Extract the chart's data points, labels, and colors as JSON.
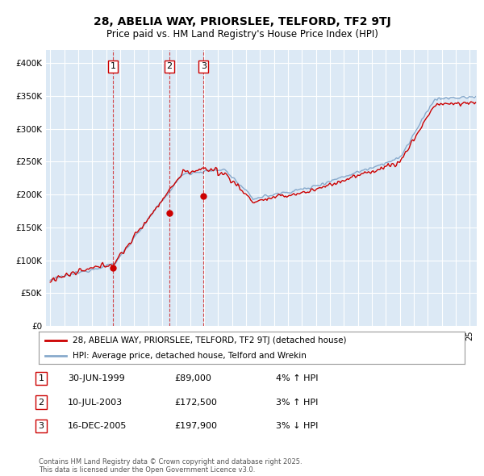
{
  "title": "28, ABELIA WAY, PRIORSLEE, TELFORD, TF2 9TJ",
  "subtitle": "Price paid vs. HM Land Registry's House Price Index (HPI)",
  "ylim": [
    0,
    420000
  ],
  "yticks": [
    0,
    50000,
    100000,
    150000,
    200000,
    250000,
    300000,
    350000,
    400000
  ],
  "ytick_labels": [
    "£0",
    "£50K",
    "£100K",
    "£150K",
    "£200K",
    "£250K",
    "£300K",
    "£350K",
    "£400K"
  ],
  "plot_bg_color": "#dce9f5",
  "grid_color": "#ffffff",
  "red_line_color": "#cc0000",
  "blue_line_color": "#88aacc",
  "sale_dates": [
    1999.5,
    2003.53,
    2005.96
  ],
  "sale_prices": [
    89000,
    172500,
    197900
  ],
  "sale_labels": [
    "1",
    "2",
    "3"
  ],
  "sale_annotations": [
    [
      "1",
      "30-JUN-1999",
      "£89,000",
      "4% ↑ HPI"
    ],
    [
      "2",
      "10-JUL-2003",
      "£172,500",
      "3% ↑ HPI"
    ],
    [
      "3",
      "16-DEC-2005",
      "£197,900",
      "3% ↓ HPI"
    ]
  ],
  "legend_line1": "28, ABELIA WAY, PRIORSLEE, TELFORD, TF2 9TJ (detached house)",
  "legend_line2": "HPI: Average price, detached house, Telford and Wrekin",
  "footer": "Contains HM Land Registry data © Crown copyright and database right 2025.\nThis data is licensed under the Open Government Licence v3.0.",
  "xmin": 1994.7,
  "xmax": 2025.5
}
